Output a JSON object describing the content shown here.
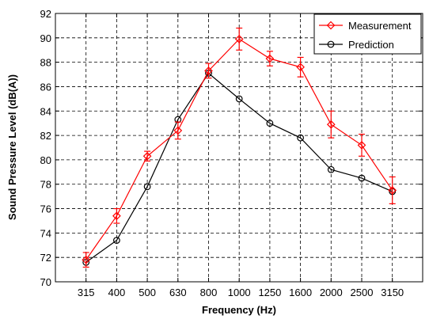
{
  "chart_data": {
    "type": "line",
    "title": "",
    "xlabel": "Frequency (Hz)",
    "ylabel": "Sound Pressure Level (dB(A))",
    "categories": [
      "315",
      "400",
      "500",
      "630",
      "800",
      "1000",
      "1250",
      "1600",
      "2000",
      "2500",
      "3150"
    ],
    "ylim": [
      70,
      92
    ],
    "yticks": [
      70,
      72,
      74,
      76,
      78,
      80,
      82,
      84,
      86,
      88,
      90,
      92
    ],
    "grid": true,
    "legend_position": "top-right",
    "series": [
      {
        "name": "Measurement",
        "color": "#ff0000",
        "marker": "diamond",
        "values": [
          71.8,
          75.4,
          80.3,
          82.4,
          87.3,
          89.9,
          88.3,
          87.6,
          82.9,
          81.2,
          77.5
        ],
        "error": [
          0.6,
          0.6,
          0.4,
          0.7,
          0.6,
          0.9,
          0.6,
          0.8,
          1.1,
          0.9,
          1.1
        ]
      },
      {
        "name": "Prediction",
        "color": "#000000",
        "marker": "circle",
        "values": [
          71.6,
          73.4,
          77.8,
          83.3,
          87.1,
          85.0,
          83.0,
          81.8,
          79.2,
          78.5,
          77.4
        ]
      }
    ]
  }
}
